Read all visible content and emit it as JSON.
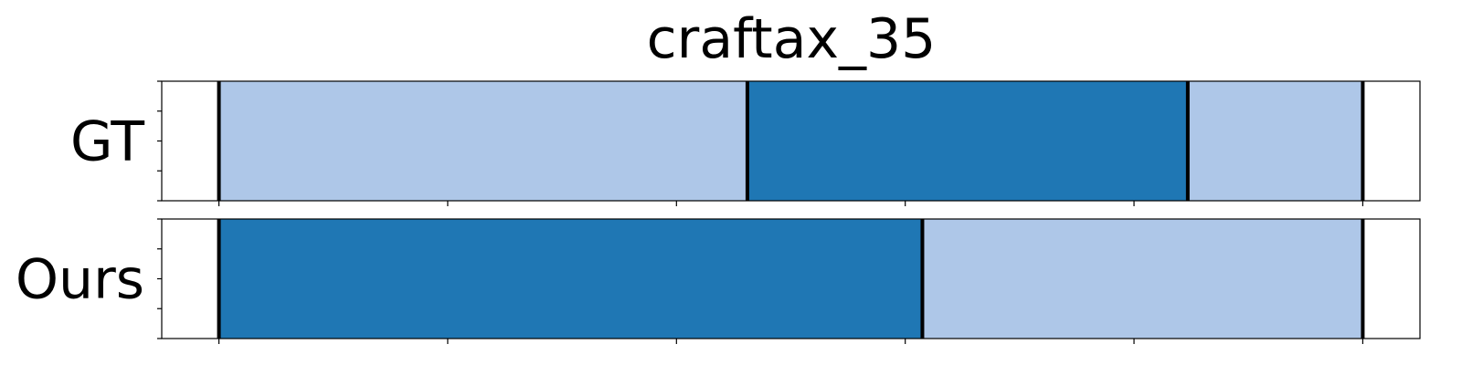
{
  "chart_data": {
    "type": "bar",
    "subtype": "segmentation-timeline",
    "title": "craftax_35",
    "xlim": [
      -0.05,
      1.05
    ],
    "x_ticks": [
      0,
      0.2,
      0.4,
      0.6,
      0.8,
      1.0
    ],
    "tick_labels_shown": false,
    "grid": false,
    "legend": "none",
    "colors": {
      "light": "#aec7e8",
      "dark": "#1f77b4",
      "boundary": "#000000"
    },
    "rows": [
      {
        "name": "GT",
        "segments": [
          {
            "start": 0.0,
            "end": 0.462,
            "color": "light"
          },
          {
            "start": 0.462,
            "end": 0.847,
            "color": "dark"
          },
          {
            "start": 0.847,
            "end": 1.0,
            "color": "light"
          }
        ],
        "boundaries": [
          0.0,
          0.462,
          0.847,
          1.0
        ]
      },
      {
        "name": "Ours",
        "segments": [
          {
            "start": 0.0,
            "end": 0.615,
            "color": "dark"
          },
          {
            "start": 0.615,
            "end": 1.0,
            "color": "light"
          }
        ],
        "boundaries": [
          0.0,
          0.615,
          1.0
        ]
      }
    ]
  }
}
